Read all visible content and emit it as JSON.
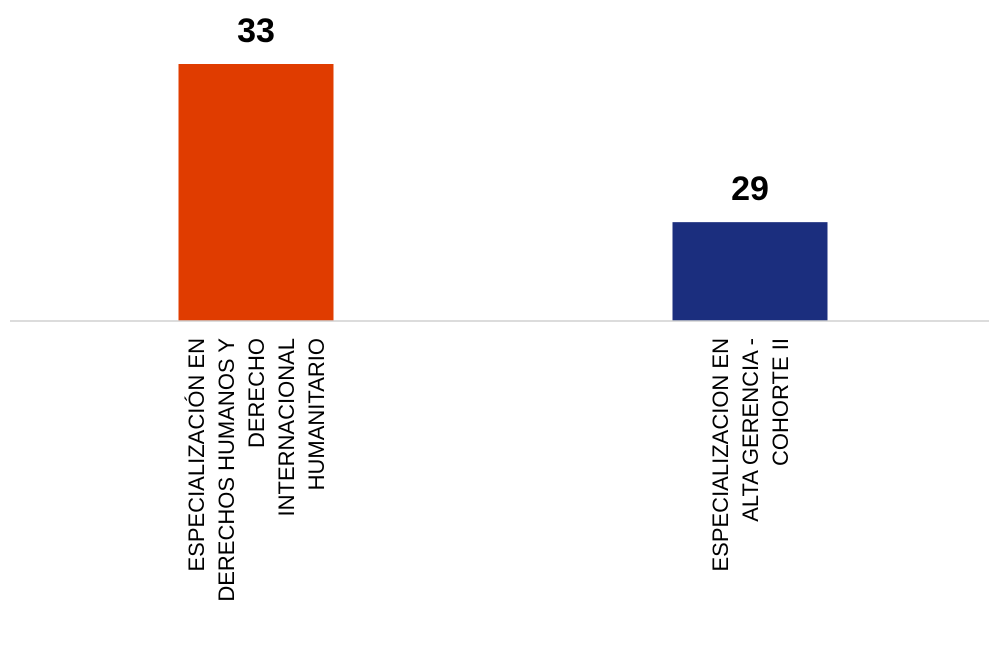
{
  "chart_data": {
    "type": "bar",
    "categories": [
      [
        "ESPECIALIZACIÓN EN",
        "DERECHOS HUMANOS Y",
        "DERECHO",
        "INTERNACIONAL",
        "HUMANITARIO"
      ],
      [
        "ESPECIALIZACION EN",
        "ALTA GERENCIA -",
        "COHORTE II"
      ]
    ],
    "values": [
      33,
      29
    ],
    "value_labels": [
      "33",
      "29"
    ],
    "colors": [
      "#e03c00",
      "#1b2e7e"
    ],
    "axis_color": "#d0d0d0",
    "ylim": [
      26.5,
      33
    ],
    "grid": false,
    "legend": "none",
    "title": "",
    "xlabel": "",
    "ylabel": ""
  }
}
